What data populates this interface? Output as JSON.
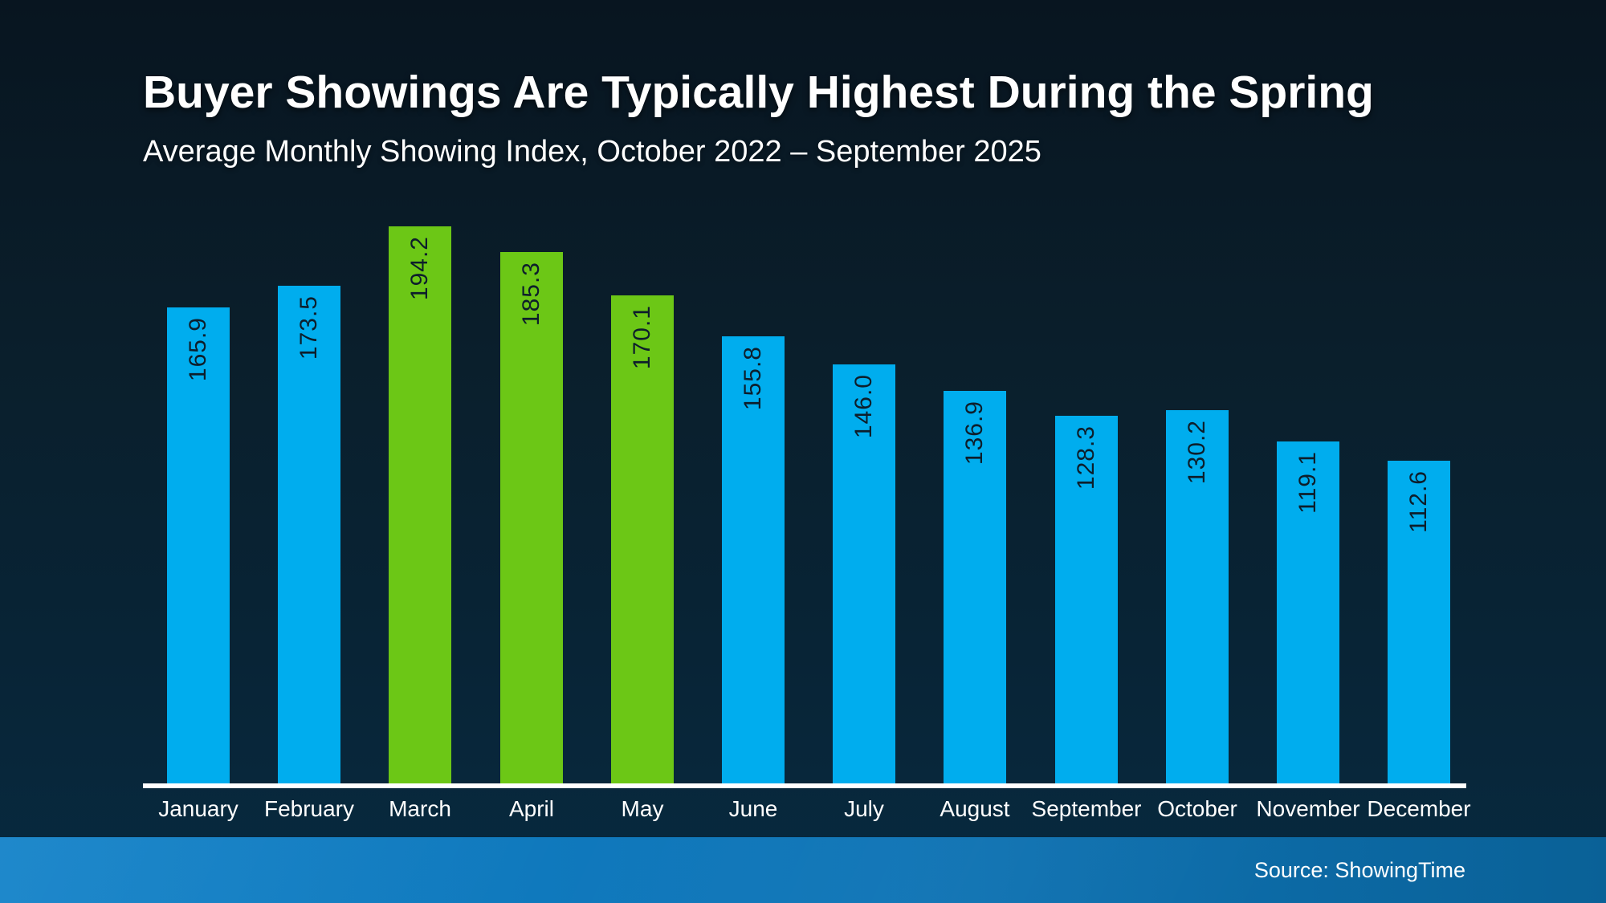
{
  "chart_data": {
    "type": "bar",
    "title": "Buyer Showings Are Typically Highest During the Spring",
    "subtitle": "Average Monthly Showing Index, October 2022 – September 2025",
    "categories": [
      "January",
      "February",
      "March",
      "April",
      "May",
      "June",
      "July",
      "August",
      "September",
      "October",
      "November",
      "December"
    ],
    "values": [
      165.9,
      173.5,
      194.2,
      185.3,
      170.1,
      155.8,
      146.0,
      136.9,
      128.3,
      130.2,
      119.1,
      112.6
    ],
    "value_labels": [
      "165.9",
      "173.5",
      "194.2",
      "185.3",
      "170.1",
      "155.8",
      "146.0",
      "136.9",
      "128.3",
      "130.2",
      "119.1",
      "112.6"
    ],
    "highlighted_categories": [
      "March",
      "April",
      "May"
    ],
    "value_labels_rotated": true,
    "xlabel": "",
    "ylabel": "",
    "ylim": [
      0,
      200
    ],
    "grid": false,
    "legend": false
  },
  "footer": {
    "source": "Source: ShowingTime"
  },
  "colors": {
    "bar_default": "#00adee",
    "bar_highlight": "#6cc716",
    "value_label_text": "#0d1e2b",
    "axis_line": "#ffffff",
    "background_top": "#0a1f2c",
    "background_bottom": "#072a40",
    "footer_left": "#1181c8",
    "footer_right": "#0a6197",
    "text": "#ffffff"
  }
}
